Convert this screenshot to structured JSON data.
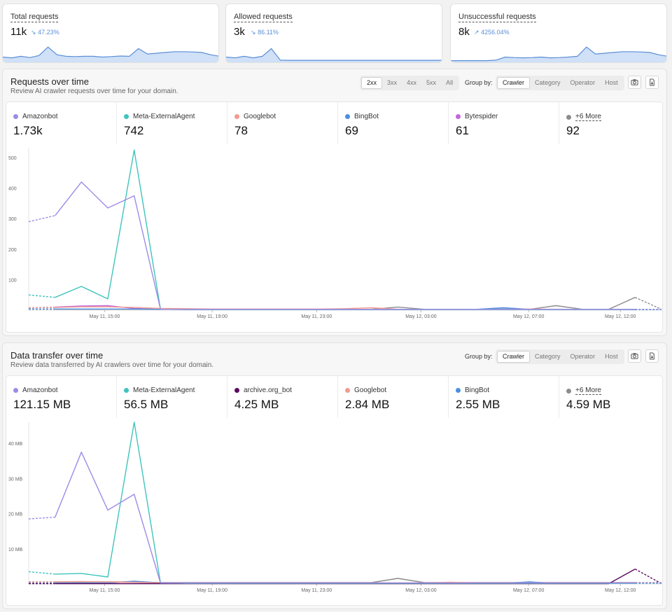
{
  "kpis": [
    {
      "title": "Total requests",
      "value": "11k",
      "delta": "47.23%",
      "trend": "down"
    },
    {
      "title": "Allowed requests",
      "value": "3k",
      "delta": "86.11%",
      "trend": "down"
    },
    {
      "title": "Unsuccessful requests",
      "value": "8k",
      "delta": "4256.04%",
      "trend": "up"
    }
  ],
  "requests_panel": {
    "title": "Requests over time",
    "subtitle": "Review AI crawler requests over time for your domain.",
    "status_filters": [
      "2xx",
      "3xx",
      "4xx",
      "5xx",
      "All"
    ],
    "group_by_label": "Group by:",
    "group_by": [
      "Crawler",
      "Category",
      "Operator",
      "Host"
    ],
    "legend": [
      {
        "name": "Amazonbot",
        "value": "1.73k",
        "color": "#9f8ae6"
      },
      {
        "name": "Meta-ExternalAgent",
        "value": "742",
        "color": "#3fc4bd"
      },
      {
        "name": "Googlebot",
        "value": "78",
        "color": "#f29a8f"
      },
      {
        "name": "BingBot",
        "value": "69",
        "color": "#4a8fe0"
      },
      {
        "name": "Bytespider",
        "value": "61",
        "color": "#c266e0"
      },
      {
        "name": "+6 More",
        "value": "92",
        "color": "#8c8c8c"
      }
    ]
  },
  "transfer_panel": {
    "title": "Data transfer over time",
    "subtitle": "Review data transferred by AI crawlers over time for your domain.",
    "group_by_label": "Group by:",
    "group_by": [
      "Crawler",
      "Category",
      "Operator",
      "Host"
    ],
    "legend": [
      {
        "name": "Amazonbot",
        "value": "121.15 MB",
        "color": "#9f8ae6"
      },
      {
        "name": "Meta-ExternalAgent",
        "value": "56.5 MB",
        "color": "#3fc4bd"
      },
      {
        "name": "archive.org_bot",
        "value": "4.25 MB",
        "color": "#5a0a5e"
      },
      {
        "name": "Googlebot",
        "value": "2.84 MB",
        "color": "#f29a8f"
      },
      {
        "name": "BingBot",
        "value": "2.55 MB",
        "color": "#4a8fe0"
      },
      {
        "name": "+6 More",
        "value": "4.59 MB",
        "color": "#8c8c8c"
      }
    ]
  },
  "chart_data": [
    {
      "type": "line",
      "x_ticks": [
        "May 11, 15:00",
        "May 11, 19:00",
        "May 11, 23:00",
        "May 12, 03:00",
        "May 12, 07:00",
        "May 12, 12:00"
      ],
      "y_ticks": [
        "100",
        "200",
        "300",
        "400",
        "500"
      ],
      "ylim": [
        0,
        530
      ],
      "series": [
        {
          "name": "Amazonbot",
          "color": "#9f8ae6",
          "values": [
            290,
            310,
            420,
            335,
            375,
            3,
            3,
            3,
            3,
            3,
            3,
            3,
            3,
            3,
            3,
            3,
            3,
            3,
            3,
            3,
            3,
            3,
            3,
            3,
            3
          ]
        },
        {
          "name": "Meta-ExternalAgent",
          "color": "#3fc4bd",
          "values": [
            50,
            42,
            78,
            37,
            525,
            3,
            2,
            2,
            2,
            2,
            2,
            2,
            2,
            2,
            2,
            2,
            2,
            2,
            2,
            2,
            2,
            2,
            2,
            2,
            2
          ]
        },
        {
          "name": "Googlebot",
          "color": "#f29a8f",
          "values": [
            8,
            9,
            11,
            11,
            9,
            6,
            5,
            4,
            4,
            4,
            4,
            4,
            5,
            8,
            3,
            3,
            3,
            3,
            3,
            4,
            3,
            3,
            3,
            3,
            3
          ]
        },
        {
          "name": "BingBot",
          "color": "#4a8fe0",
          "values": [
            4,
            4,
            4,
            4,
            4,
            3,
            3,
            3,
            3,
            3,
            3,
            3,
            3,
            3,
            3,
            3,
            3,
            3,
            8,
            3,
            3,
            3,
            3,
            3,
            3
          ]
        },
        {
          "name": "Bytespider",
          "color": "#c266e0",
          "values": [
            8,
            10,
            14,
            15,
            6,
            3,
            2,
            2,
            2,
            2,
            2,
            2,
            2,
            2,
            2,
            2,
            2,
            2,
            2,
            2,
            2,
            2,
            2,
            2,
            2
          ]
        },
        {
          "name": "+6 More",
          "color": "#8c8c8c",
          "values": [
            3,
            3,
            3,
            3,
            3,
            3,
            3,
            3,
            3,
            3,
            3,
            3,
            3,
            3,
            10,
            3,
            3,
            3,
            4,
            3,
            15,
            3,
            3,
            42,
            3
          ]
        }
      ]
    },
    {
      "type": "line",
      "x_ticks": [
        "May 11, 15:00",
        "May 11, 19:00",
        "May 11, 23:00",
        "May 12, 03:00",
        "May 12, 07:00",
        "May 12, 12:00"
      ],
      "y_ticks": [
        "10 MB",
        "20 MB",
        "30 MB",
        "40 MB"
      ],
      "ylim": [
        0,
        46
      ],
      "series": [
        {
          "name": "Amazonbot",
          "color": "#9f8ae6",
          "values": [
            18.5,
            19,
            37.5,
            21,
            25.5,
            0.3,
            0.3,
            0.3,
            0.3,
            0.3,
            0.3,
            0.3,
            0.3,
            0.3,
            0.3,
            0.3,
            0.3,
            0.3,
            0.3,
            0.3,
            0.3,
            0.3,
            0.3,
            0.3,
            0.3
          ]
        },
        {
          "name": "Meta-ExternalAgent",
          "color": "#3fc4bd",
          "values": [
            3.5,
            2.8,
            3,
            2,
            46,
            0.3,
            0.2,
            0.2,
            0.2,
            0.2,
            0.2,
            0.2,
            0.2,
            0.2,
            0.2,
            0.2,
            0.2,
            0.2,
            0.2,
            0.2,
            0.2,
            0.2,
            0.2,
            0.2,
            0.2
          ]
        },
        {
          "name": "archive.org_bot",
          "color": "#5a0a5e",
          "values": [
            0.1,
            0.1,
            0.1,
            0.1,
            0.1,
            0.1,
            0.1,
            0.1,
            0.1,
            0.1,
            0.1,
            0.1,
            0.1,
            0.1,
            0.1,
            0.1,
            0.1,
            0.1,
            0.1,
            0.1,
            0.1,
            0.1,
            0.1,
            4.25,
            0.1
          ]
        },
        {
          "name": "Googlebot",
          "color": "#f29a8f",
          "values": [
            0.5,
            0.6,
            0.7,
            0.6,
            0.5,
            0.3,
            0.3,
            0.3,
            0.3,
            0.3,
            0.3,
            0.3,
            0.3,
            0.3,
            0.3,
            0.3,
            0.5,
            0.3,
            0.3,
            0.3,
            0.3,
            0.3,
            0.3,
            0.3,
            0.3
          ]
        },
        {
          "name": "BingBot",
          "color": "#4a8fe0",
          "values": [
            0.3,
            0.3,
            0.3,
            0.3,
            0.8,
            0.3,
            0.2,
            0.2,
            0.2,
            0.2,
            0.2,
            0.2,
            0.2,
            0.2,
            0.2,
            0.2,
            0.2,
            0.2,
            0.2,
            0.6,
            0.2,
            0.2,
            0.2,
            0.2,
            0.2
          ]
        },
        {
          "name": "+6 More",
          "color": "#8c8c8c",
          "values": [
            0.6,
            0.6,
            0.6,
            0.6,
            0.6,
            0.4,
            0.4,
            0.4,
            0.4,
            0.4,
            0.4,
            0.4,
            0.4,
            0.4,
            1.6,
            0.4,
            0.4,
            0.4,
            0.4,
            0.4,
            0.4,
            0.4,
            0.4,
            0.4,
            0.4
          ]
        }
      ]
    }
  ],
  "sparklines": [
    [
      0.25,
      0.2,
      0.3,
      0.22,
      0.35,
      0.9,
      0.4,
      0.3,
      0.28,
      0.3,
      0.3,
      0.25,
      0.28,
      0.32,
      0.3,
      0.8,
      0.45,
      0.5,
      0.55,
      0.6,
      0.6,
      0.58,
      0.55,
      0.4,
      0.3
    ],
    [
      0.25,
      0.2,
      0.3,
      0.2,
      0.3,
      0.8,
      0.05,
      0.04,
      0.04,
      0.04,
      0.04,
      0.04,
      0.04,
      0.04,
      0.04,
      0.04,
      0.04,
      0.04,
      0.04,
      0.04,
      0.04,
      0.04,
      0.04,
      0.04,
      0.04
    ],
    [
      0.02,
      0.02,
      0.02,
      0.02,
      0.02,
      0.05,
      0.25,
      0.22,
      0.2,
      0.22,
      0.25,
      0.2,
      0.22,
      0.25,
      0.3,
      0.9,
      0.45,
      0.5,
      0.55,
      0.6,
      0.6,
      0.58,
      0.55,
      0.4,
      0.3
    ]
  ]
}
